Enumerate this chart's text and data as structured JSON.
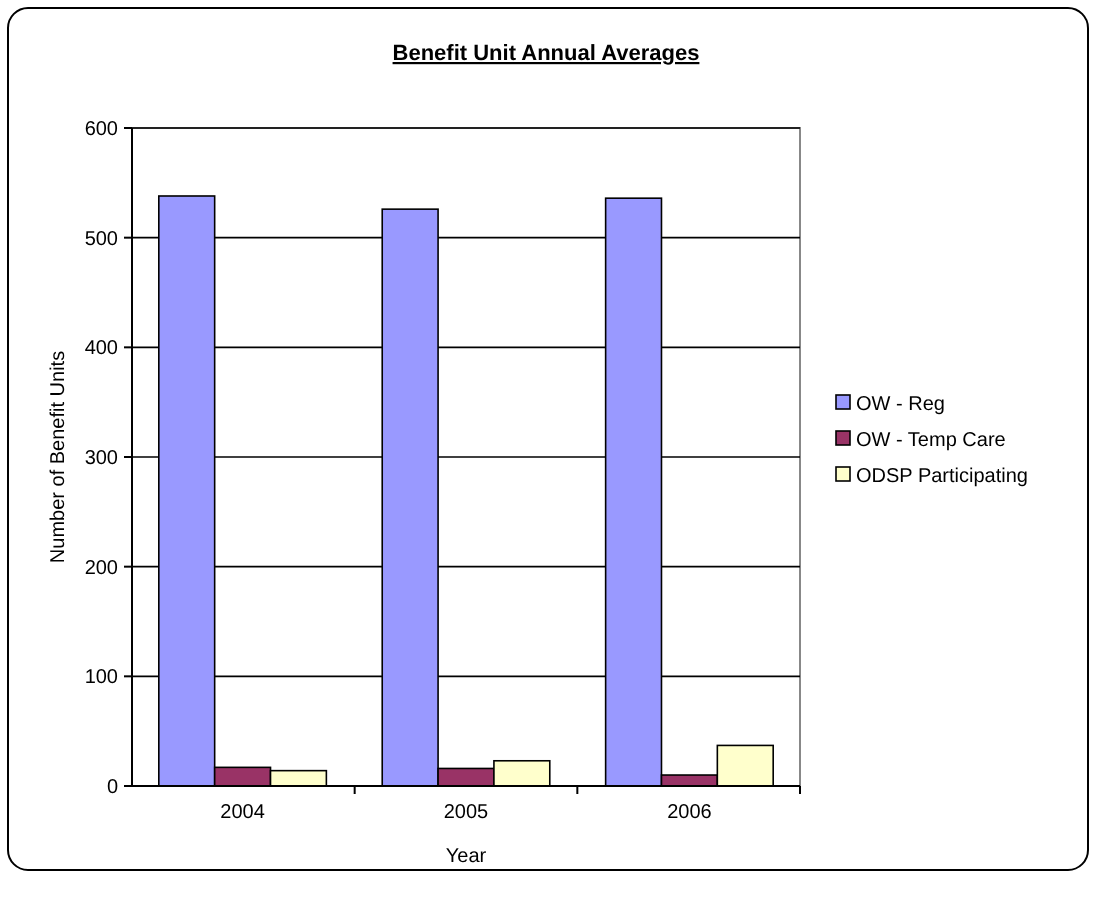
{
  "chart_data": {
    "type": "bar",
    "title": "Benefit Unit Annual Averages",
    "xlabel": "Year",
    "ylabel": "Number of Benefit Units",
    "categories": [
      "2004",
      "2005",
      "2006"
    ],
    "series": [
      {
        "name": "OW - Reg",
        "color": "#9999ff",
        "values": [
          538,
          526,
          536
        ]
      },
      {
        "name": "OW - Temp Care",
        "color": "#993366",
        "values": [
          17,
          16,
          10
        ]
      },
      {
        "name": "ODSP Participating",
        "color": "#ffffcc",
        "values": [
          14,
          23,
          37
        ]
      }
    ],
    "ylim": [
      0,
      600
    ],
    "yticks": [
      0,
      100,
      200,
      300,
      400,
      500,
      600
    ],
    "grid": "y",
    "legend": "right"
  }
}
